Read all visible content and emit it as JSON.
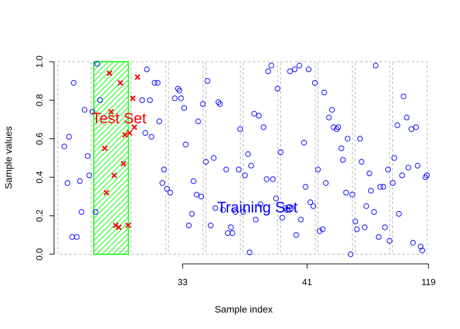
{
  "chart_data": {
    "type": "scatter",
    "title": "",
    "xlabel": "Sample index",
    "ylabel": "Sample values",
    "xlim": [
      1,
      120
    ],
    "ylim": [
      0,
      1
    ],
    "y_ticks": [
      "0.0",
      "0.2",
      "0.4",
      "0.6",
      "0.8",
      "1.0"
    ],
    "x_tick_labels": [
      {
        "at": 41.5,
        "label": "33"
      },
      {
        "at": 81.5,
        "label": "41"
      },
      {
        "at": 120.5,
        "label": "119"
      }
    ],
    "fold_boundaries": [
      [
        1,
        12.5
      ],
      [
        12.5,
        24.5
      ],
      [
        24.5,
        36.5
      ],
      [
        36.5,
        48.5
      ],
      [
        48.5,
        60.5
      ],
      [
        60.5,
        72.5
      ],
      [
        72.5,
        84.5
      ],
      [
        84.5,
        96.5
      ],
      [
        96.5,
        108.5
      ],
      [
        108.5,
        120.5
      ]
    ],
    "test_region": [
      12.5,
      24.5
    ],
    "annotations": {
      "test_label": "Test Set",
      "train_label": "Training Set"
    },
    "colors": {
      "test": "#ff0000",
      "train": "#0000ff",
      "test_fill": "#00ff00",
      "fold_box": "#bebebe"
    },
    "series": [
      {
        "marker": "circle",
        "color": "#0000ff",
        "points": [
          [
            0,
            0.56
          ],
          [
            1,
            0.37
          ],
          [
            1.5,
            0.61
          ],
          [
            2.5,
            0.09
          ],
          [
            3,
            0.89
          ],
          [
            4,
            0.09
          ],
          [
            5,
            0.38
          ],
          [
            5.5,
            0.22
          ],
          [
            6.5,
            0.75
          ],
          [
            7.5,
            0.51
          ],
          [
            8,
            0.41
          ],
          [
            9,
            0.74
          ],
          [
            10,
            0.22
          ],
          [
            10.5,
            0.99
          ],
          [
            11.5,
            0.8
          ],
          [
            25,
            0.8
          ],
          [
            26,
            0.63
          ],
          [
            26.5,
            0.96
          ],
          [
            27.5,
            0.8
          ],
          [
            28,
            0.61
          ],
          [
            29,
            0.89
          ],
          [
            30,
            0.89
          ],
          [
            30.5,
            0.69
          ],
          [
            31.5,
            0.37
          ],
          [
            32,
            0.44
          ],
          [
            33,
            0.34
          ],
          [
            34,
            0.32
          ],
          [
            35.5,
            0.81
          ],
          [
            36.5,
            0.86
          ],
          [
            37,
            0.85
          ],
          [
            37.5,
            0.81
          ],
          [
            38.5,
            0.76
          ],
          [
            39,
            0.57
          ],
          [
            40,
            0.15
          ],
          [
            41,
            0.21
          ],
          [
            41.5,
            0.38
          ],
          [
            42.5,
            0.31
          ],
          [
            43,
            0.69
          ],
          [
            44,
            0.3
          ],
          [
            44.5,
            0.78
          ],
          [
            45.5,
            0.48
          ],
          [
            46,
            0.9
          ],
          [
            47,
            0.15
          ],
          [
            48,
            0.5
          ],
          [
            48.5,
            0.24
          ],
          [
            49.5,
            0.79
          ],
          [
            50,
            0.78
          ],
          [
            51,
            0.23
          ],
          [
            52,
            0.44
          ],
          [
            52.5,
            0.11
          ],
          [
            53.5,
            0.14
          ],
          [
            54,
            0.11
          ],
          [
            55,
            0.22
          ],
          [
            56,
            0.44
          ],
          [
            56.5,
            0.65
          ],
          [
            57.5,
            0.22
          ],
          [
            58,
            0.41
          ],
          [
            59,
            0.52
          ],
          [
            59.5,
            0.01
          ],
          [
            60,
            0.46
          ],
          [
            61,
            0.73
          ],
          [
            61.5,
            0.18
          ],
          [
            62.5,
            0.72
          ],
          [
            63,
            0.26
          ],
          [
            64,
            0.66
          ],
          [
            65,
            0.39
          ],
          [
            65.5,
            0.95
          ],
          [
            66.5,
            0.98
          ],
          [
            67,
            0.39
          ],
          [
            68,
            0.29
          ],
          [
            68.5,
            0.86
          ],
          [
            69.5,
            0.53
          ],
          [
            70,
            0.19
          ],
          [
            71,
            0.24
          ],
          [
            71.5,
            0.23
          ],
          [
            72.5,
            0.95
          ],
          [
            73,
            0.24
          ],
          [
            74,
            0.96
          ],
          [
            74.5,
            0.1
          ],
          [
            75.5,
            0.98
          ],
          [
            76,
            0.18
          ],
          [
            77,
            0.58
          ],
          [
            77.5,
            0.35
          ],
          [
            78.5,
            0.96
          ],
          [
            79,
            0.27
          ],
          [
            80,
            0.25
          ],
          [
            80.5,
            0.89
          ],
          [
            81.5,
            0.44
          ],
          [
            82,
            0.12
          ],
          [
            83,
            0.13
          ],
          [
            83.5,
            0.84
          ],
          [
            84,
            0.37
          ],
          [
            85,
            0.71
          ],
          [
            86,
            0.75
          ],
          [
            86.5,
            0.66
          ],
          [
            87.5,
            0.65
          ],
          [
            88,
            0.66
          ],
          [
            89,
            0.55
          ],
          [
            89.5,
            0.49
          ],
          [
            90.5,
            0.32
          ],
          [
            91,
            0.6
          ],
          [
            92,
            0.0
          ],
          [
            92.5,
            0.31
          ],
          [
            93.5,
            0.17
          ],
          [
            94,
            0.13
          ],
          [
            95,
            0.6
          ],
          [
            95.5,
            0.48
          ],
          [
            96.5,
            0.14
          ],
          [
            97,
            0.25
          ],
          [
            98,
            0.42
          ],
          [
            98.5,
            0.33
          ],
          [
            99.5,
            0.22
          ],
          [
            100,
            0.98
          ],
          [
            101,
            0.09
          ],
          [
            101.5,
            0.35
          ],
          [
            102.5,
            0.35
          ],
          [
            103,
            0.14
          ],
          [
            104,
            0.44
          ],
          [
            104.5,
            0.07
          ],
          [
            105.5,
            0.37
          ],
          [
            106,
            0.5
          ],
          [
            107,
            0.67
          ],
          [
            107.5,
            0.21
          ],
          [
            108.5,
            0.41
          ],
          [
            109,
            0.82
          ],
          [
            110,
            0.71
          ],
          [
            110.5,
            0.45
          ],
          [
            111.5,
            0.65
          ],
          [
            112,
            0.06
          ],
          [
            113,
            0.66
          ],
          [
            113.5,
            0.46
          ],
          [
            114.5,
            0.04
          ],
          [
            115,
            0.02
          ],
          [
            116,
            0.4
          ],
          [
            116.5,
            0.41
          ]
        ]
      },
      {
        "marker": "cross",
        "color": "#ff0000",
        "points": [
          [
            13,
            0.55
          ],
          [
            13.5,
            0.32
          ],
          [
            14.5,
            0.94
          ],
          [
            15,
            0.74
          ],
          [
            16,
            0.41
          ],
          [
            16.5,
            0.15
          ],
          [
            17.5,
            0.14
          ],
          [
            18,
            0.89
          ],
          [
            19,
            0.47
          ],
          [
            19.5,
            0.62
          ],
          [
            20.5,
            0.15
          ],
          [
            21,
            0.63
          ],
          [
            22,
            0.81
          ],
          [
            22.5,
            0.66
          ],
          [
            23.5,
            0.92
          ]
        ]
      }
    ]
  }
}
